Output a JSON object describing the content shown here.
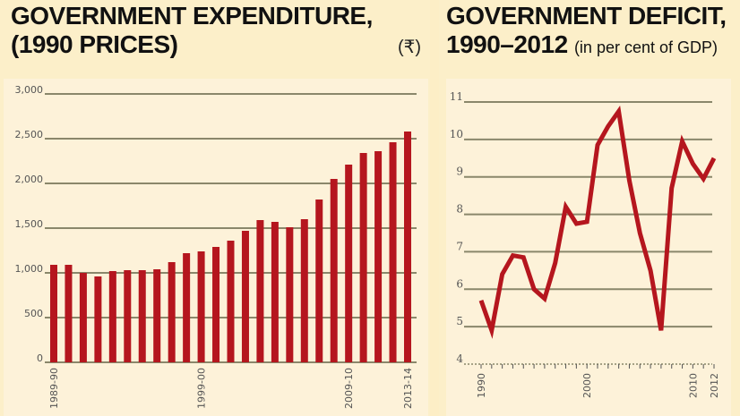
{
  "colors": {
    "bar": "#b5161e",
    "line": "#b5161e",
    "grid": "#8a876b",
    "text": "#111111",
    "background": "#fcefc9"
  },
  "chart_data": [
    {
      "type": "bar",
      "title_line1": "GOVERNMENT EXPENDITURE,",
      "title_line2": "(1990 PRICES)",
      "unit": "(₹)",
      "xlabel": "",
      "ylabel": "",
      "ylim": [
        0,
        3000
      ],
      "yticks": [
        0,
        500,
        1000,
        1500,
        2000,
        2500,
        3000
      ],
      "ytick_labels": [
        "0",
        "500",
        "1,000",
        "1,500",
        "2,000",
        "2,500",
        "3,000"
      ],
      "categories": [
        "1989-90",
        "1990-91",
        "1991-92",
        "1992-93",
        "1993-94",
        "1994-95",
        "1995-96",
        "1996-97",
        "1997-98",
        "1998-99",
        "1999-00",
        "2000-01",
        "2001-02",
        "2002-03",
        "2003-04",
        "2004-05",
        "2005-06",
        "2006-07",
        "2007-08",
        "2008-09",
        "2009-10",
        "2010-11",
        "2011-12",
        "2012-13",
        "2013-14"
      ],
      "xtick_labels": {
        "0": "1989-90",
        "10": "1999-00",
        "20": "2009-10",
        "24": "2013-14"
      },
      "values": [
        1090,
        1090,
        1000,
        960,
        1020,
        1030,
        1030,
        1040,
        1120,
        1220,
        1240,
        1290,
        1360,
        1470,
        1590,
        1570,
        1510,
        1600,
        1820,
        2050,
        2210,
        2340,
        2360,
        2460,
        2580
      ],
      "grid": true,
      "legend": "none"
    },
    {
      "type": "line",
      "title_line1": "GOVERNMENT DEFICIT,",
      "title_line2": "1990–2012",
      "subtitle": "(in per cent of GDP)",
      "xlabel": "",
      "ylabel": "",
      "ylim": [
        4,
        11
      ],
      "xlim": [
        1990,
        2012
      ],
      "yticks": [
        4,
        5,
        6,
        7,
        8,
        9,
        10,
        11
      ],
      "ytick_labels": [
        "4",
        "5",
        "6",
        "7",
        "8",
        "9",
        "10",
        "11"
      ],
      "xtick_labels": [
        "1990",
        "2000",
        "2010",
        "2012"
      ],
      "x": [
        1990,
        1991,
        1992,
        1993,
        1994,
        1995,
        1996,
        1997,
        1998,
        1999,
        2000,
        2001,
        2002,
        2003,
        2004,
        2005,
        2006,
        2007,
        2008,
        2009,
        2010,
        2011,
        2012
      ],
      "series": [
        {
          "name": "Government deficit",
          "values": [
            5.7,
            4.9,
            6.4,
            6.9,
            6.85,
            6.0,
            5.75,
            6.7,
            8.2,
            7.75,
            7.8,
            9.85,
            10.35,
            10.75,
            8.9,
            7.5,
            6.5,
            4.9,
            8.7,
            9.95,
            9.35,
            8.95,
            9.5
          ]
        }
      ],
      "grid": true,
      "legend": "none"
    }
  ]
}
